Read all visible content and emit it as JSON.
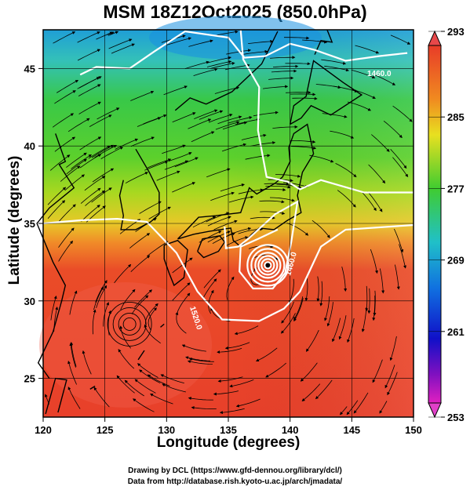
{
  "title": "MSM 18Z12Oct2025 (850.0hPa)",
  "x_axis": {
    "label": "Longitude (degrees)",
    "ticks": [
      "120",
      "125",
      "130",
      "135",
      "140",
      "145",
      "150"
    ]
  },
  "y_axis": {
    "label": "Latitude  (degrees)",
    "ticks": [
      "25",
      "30",
      "35",
      "40",
      "45"
    ]
  },
  "colorbar": {
    "ticks": [
      "293",
      "285",
      "277",
      "269",
      "261",
      "253"
    ]
  },
  "contour_labels": [
    "1460.0",
    "1460.0",
    "1520.0"
  ],
  "credits": {
    "line1": "Drawing by DCL (https://www.gfd-dennou.org/library/dcl/)",
    "line2": "Data from http://database.rish.kyoto-u.ac.jp/arch/jmadata/"
  },
  "chart_data": {
    "type": "heatmap",
    "title": "MSM 18Z12Oct2025 (850.0hPa)",
    "xlabel": "Longitude (degrees)",
    "ylabel": "Latitude  (degrees)",
    "xlim": [
      120,
      150
    ],
    "ylim": [
      22.5,
      47.5
    ],
    "x_ticks": [
      120,
      125,
      130,
      135,
      140,
      145,
      150
    ],
    "y_ticks": [
      25,
      30,
      35,
      40,
      45
    ],
    "colorbar_range": [
      253,
      293
    ],
    "colorbar_ticks": [
      293,
      285,
      277,
      269,
      261,
      253
    ],
    "grid": true,
    "overlays": [
      "streamlines",
      "geopotential height contours (white)",
      "coastlines"
    ],
    "contour_labels": [
      "1460.0",
      "1460.0",
      "1520.0"
    ],
    "typhoon_center": {
      "lon": 138.2,
      "lat": 32.3
    },
    "colors": {
      "warm": "#e8402a",
      "mid": "#f0d020",
      "cool_green": "#38c838",
      "cold": "#28b4c8"
    }
  }
}
